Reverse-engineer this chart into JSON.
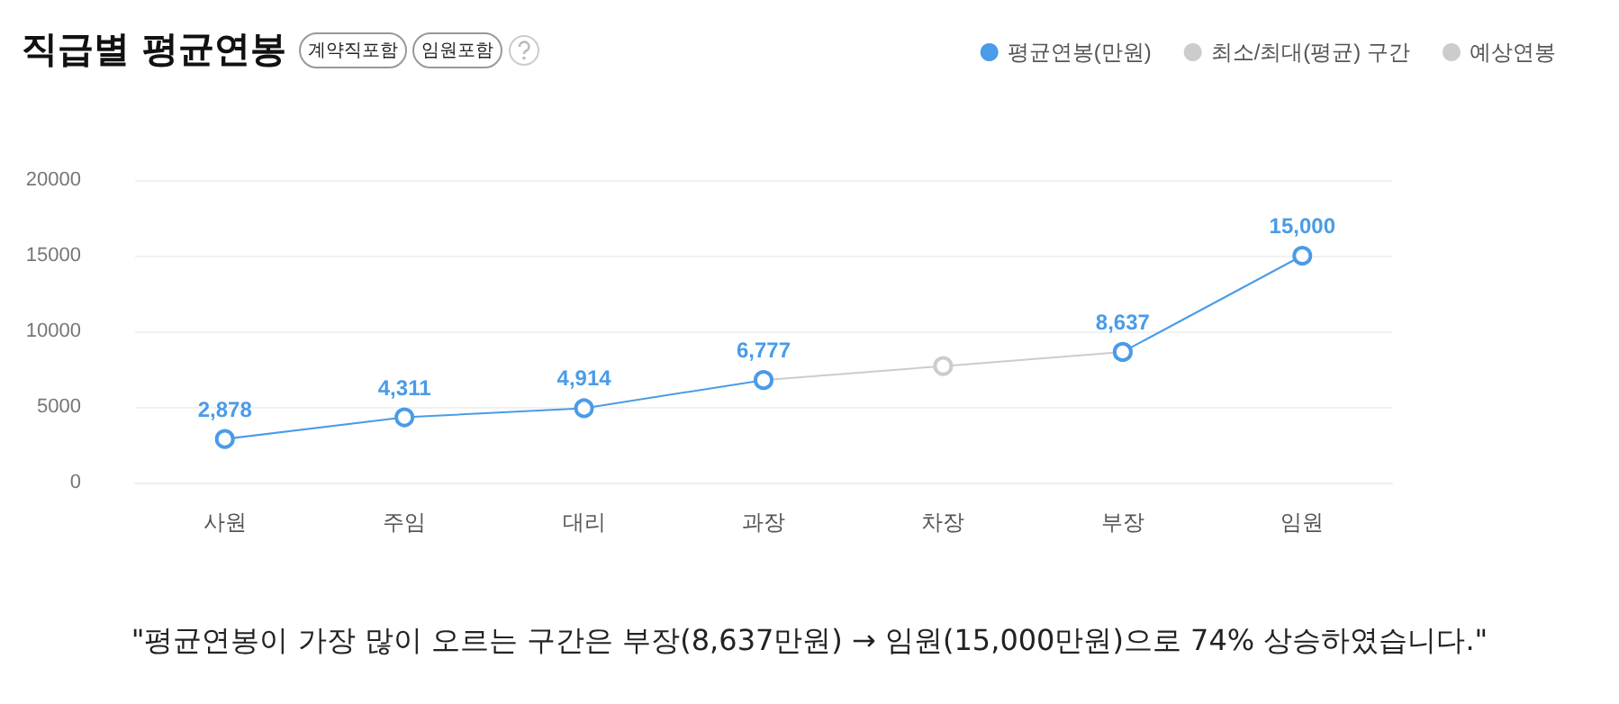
{
  "chart_data": {
    "type": "line",
    "title": "직급별 평균연봉",
    "annotations": [
      "계약직포함",
      "임원포함",
      "\"평균연봉이 가장 많이 오르는 구간은 부장(8,637만원) → 임원(15,000만원)으로 74% 상승하였습니다.\""
    ],
    "categories": [
      "사원",
      "주임",
      "대리",
      "과장",
      "차장",
      "부장",
      "임원"
    ],
    "series": [
      {
        "name": "평균연봉(만원)",
        "color": "#4a9be8",
        "values": [
          2878,
          4311,
          4914,
          6777,
          null,
          8637,
          15000
        ],
        "value_labels": [
          "2,878",
          "4,311",
          "4,914",
          "6,777",
          null,
          "8,637",
          "15,000"
        ]
      },
      {
        "name": "최소/최대(평균) 구간",
        "color": "#cccccc",
        "values": [
          null,
          null,
          null,
          null,
          null,
          null,
          null
        ]
      },
      {
        "name": "예상연봉",
        "color": "#cccccc",
        "values": [
          null,
          null,
          null,
          6777,
          7700,
          8637,
          null
        ]
      }
    ],
    "ylim": [
      0,
      20000
    ],
    "yticks": [
      0,
      5000,
      10000,
      15000,
      20000
    ],
    "grid": "y",
    "legend": "top right",
    "marker": "circle",
    "line_style": "solid"
  }
}
